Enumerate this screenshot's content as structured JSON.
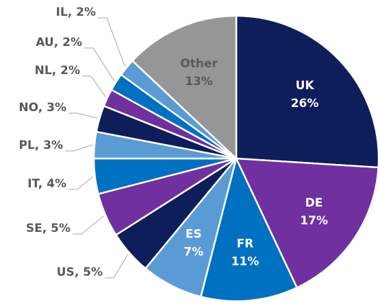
{
  "chart_data": {
    "type": "pie",
    "categories": [
      "UK",
      "DE",
      "FR",
      "ES",
      "US",
      "SE",
      "IT",
      "PL",
      "NO",
      "NL",
      "AU",
      "IL",
      "Other"
    ],
    "values": [
      26,
      17,
      11,
      7,
      5,
      5,
      4,
      3,
      3,
      2,
      2,
      2,
      13
    ],
    "value_labels": [
      "26%",
      "17%",
      "11%",
      "7%",
      "5%",
      "5%",
      "4%",
      "3%",
      "3%",
      "2%",
      "2%",
      "2%",
      "13%"
    ],
    "label_separator": ", ",
    "colors": [
      "#0e1e5b",
      "#7030a0",
      "#0070c0",
      "#5b9bd5",
      "#0e1e5b",
      "#7030a0",
      "#0070c0",
      "#5b9bd5",
      "#0e1e5b",
      "#7030a0",
      "#0070c0",
      "#5b9bd5",
      "#969696"
    ]
  }
}
